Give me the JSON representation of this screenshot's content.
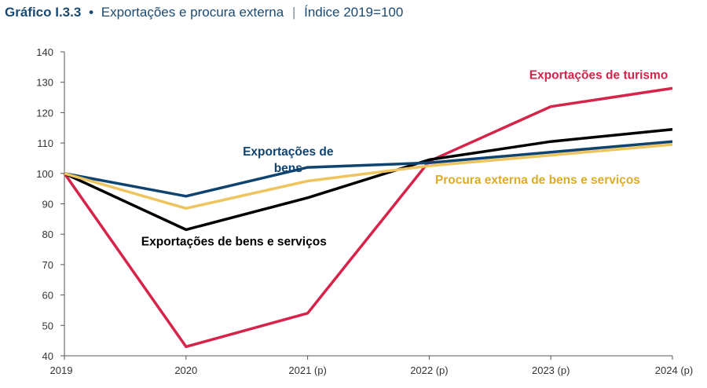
{
  "header": {
    "label": "Gráfico I.3.3",
    "separator": "•",
    "title": "Exportações e procura externa",
    "divider": "|",
    "subtitle": "Índice 2019=100"
  },
  "chart_data": {
    "type": "line",
    "title": "Exportações e procura externa",
    "subtitle": "Índice 2019=100",
    "xlabel": "",
    "ylabel": "",
    "x": [
      "2019",
      "2020",
      "2021 (p)",
      "2022 (p)",
      "2023 (p)",
      "2024 (p)"
    ],
    "ylim": [
      40,
      140
    ],
    "yticks": [
      "40",
      "50",
      "60",
      "70",
      "80",
      "90",
      "100",
      "110",
      "120",
      "130",
      "140"
    ],
    "grid": false,
    "series": [
      {
        "name": "Exportações de turismo",
        "color": "#d6234a",
        "values": [
          100,
          43,
          54,
          104,
          122,
          128
        ]
      },
      {
        "name": "Exportações de bens e serviços",
        "color": "#000000",
        "values": [
          100,
          81.5,
          92,
          104.5,
          110.5,
          114.5
        ]
      },
      {
        "name": "Exportações de bens",
        "color": "#0f4370",
        "values": [
          100,
          92.5,
          102,
          103.5,
          107,
          110.5
        ]
      },
      {
        "name": "Procura externa de bens e serviços",
        "color": "#eec45e",
        "values": [
          100,
          88.5,
          97.5,
          102.5,
          106,
          109.5
        ]
      }
    ],
    "annotations": [
      {
        "series": "Exportações de turismo",
        "lines": [
          "Exportações de turismo"
        ],
        "color": "#d6234a"
      },
      {
        "series": "Exportações de bens",
        "lines": [
          "Exportações de",
          "bens"
        ],
        "color": "#0f4370"
      },
      {
        "series": "Procura externa de bens e serviços",
        "lines": [
          "Procura externa de bens e serviços"
        ],
        "color": "#dbab2a"
      },
      {
        "series": "Exportações de bens e serviços",
        "lines": [
          "Exportações de bens e serviços"
        ],
        "color": "#000000"
      }
    ]
  }
}
